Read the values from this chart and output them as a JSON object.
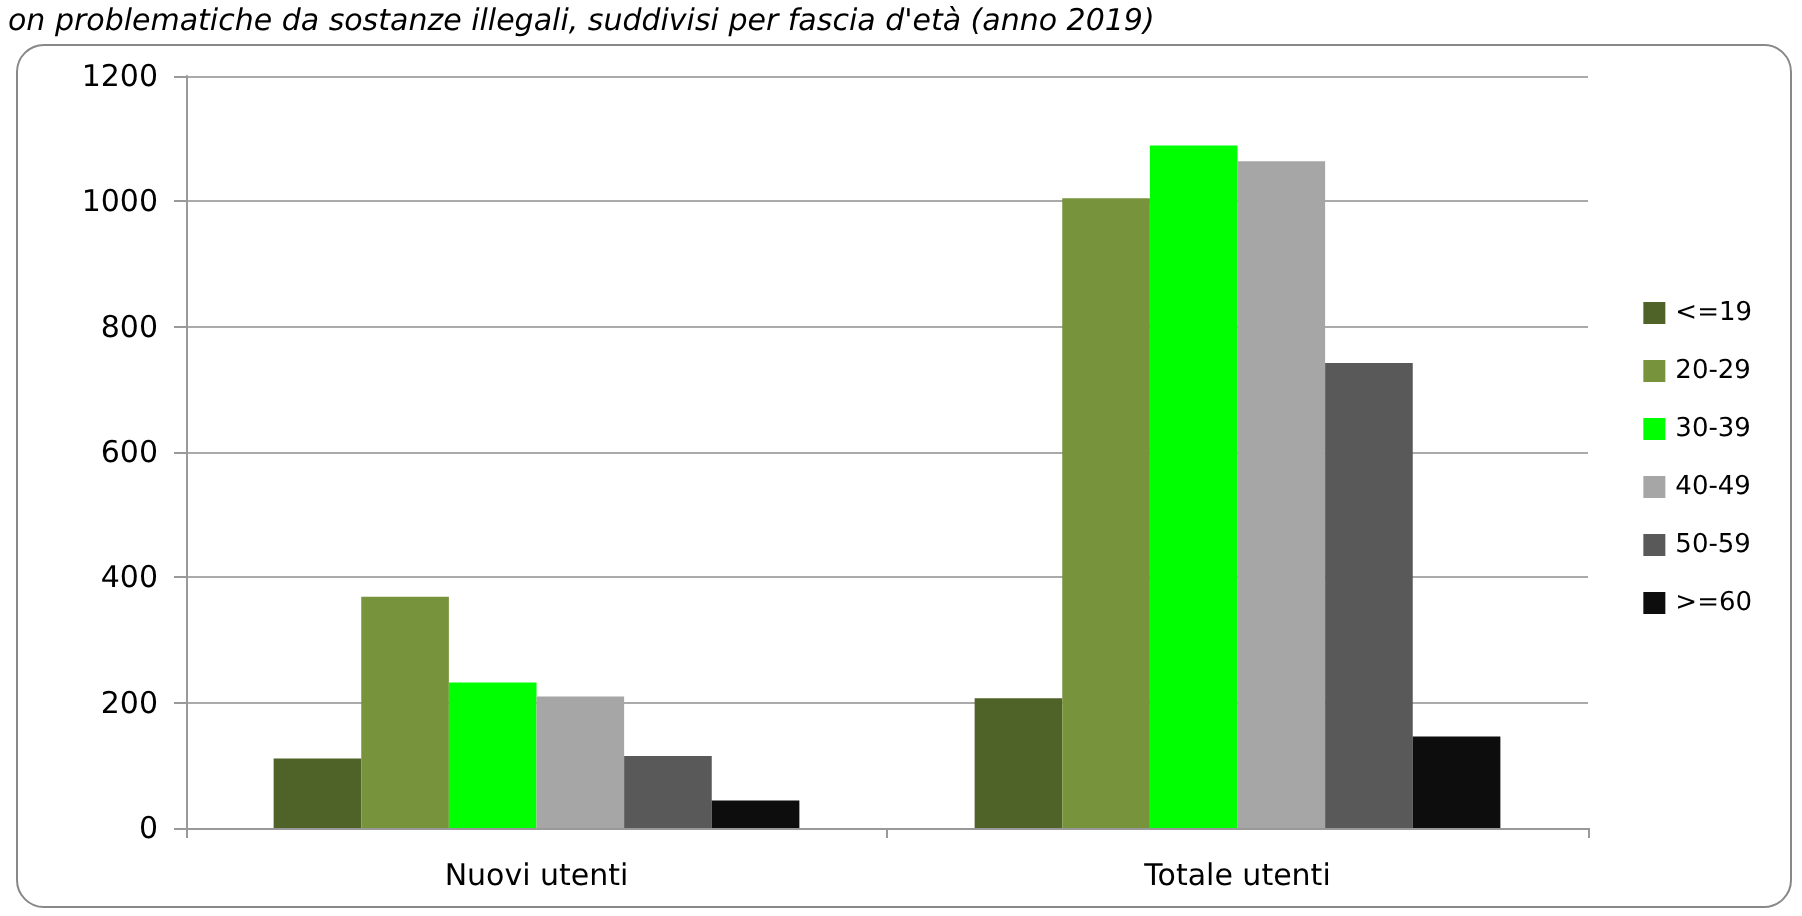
{
  "chart_data": {
    "type": "bar",
    "title": "on problematiche da sostanze illegali, suddivisi per fascia d'età (anno 2019)",
    "categories": [
      "Nuovi utenti",
      "Totale utenti"
    ],
    "series": [
      {
        "name": "<=19",
        "color": "#4f6228",
        "values": [
          111,
          207
        ]
      },
      {
        "name": "20-29",
        "color": "#77933c",
        "values": [
          369,
          1005
        ]
      },
      {
        "name": "30-39",
        "color": "#00ff00",
        "values": [
          232,
          1089
        ]
      },
      {
        "name": "40-49",
        "color": "#a6a6a6",
        "values": [
          210,
          1064
        ]
      },
      {
        "name": "50-59",
        "color": "#595959",
        "values": [
          115,
          742
        ]
      },
      {
        "name": ">=60",
        "color": "#0d0d0d",
        "values": [
          44,
          146
        ]
      }
    ],
    "ylim": [
      0,
      1200
    ],
    "yticks": [
      0,
      200,
      400,
      600,
      800,
      1000,
      1200
    ],
    "grid": "y",
    "legend": "right"
  }
}
